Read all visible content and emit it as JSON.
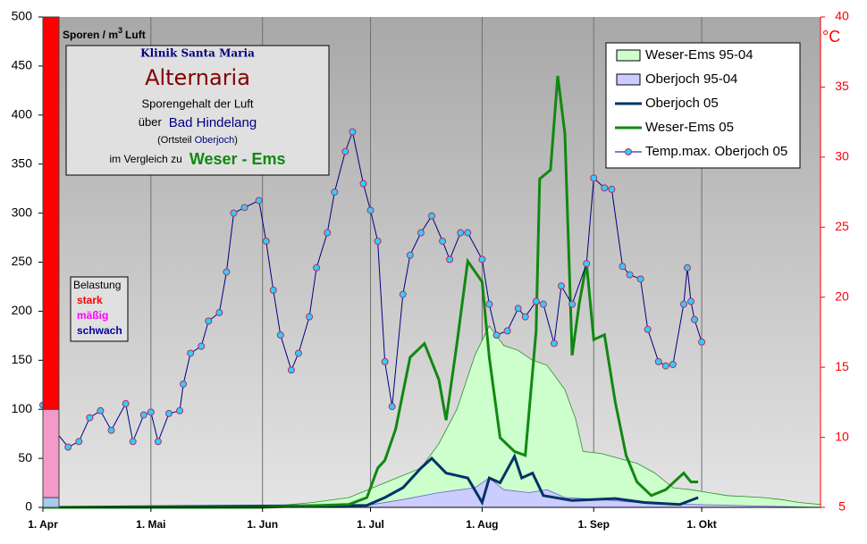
{
  "chart_data": {
    "type": "line",
    "y_label": {
      "text": "Sporen / m",
      "sup": "3",
      "rest": "Luft"
    },
    "y2_label": "°C",
    "xlim": [
      0,
      216
    ],
    "xticks": [
      {
        "value": 0,
        "label": "1. Apr"
      },
      {
        "value": 30,
        "label": "1. Mai"
      },
      {
        "value": 61,
        "label": "1. Jun"
      },
      {
        "value": 91,
        "label": "1. Jul"
      },
      {
        "value": 122,
        "label": "1. Aug"
      },
      {
        "value": 153,
        "label": "1. Sep"
      },
      {
        "value": 183,
        "label": "1. Okt"
      }
    ],
    "ylim": [
      0,
      500
    ],
    "yticks": [
      0,
      50,
      100,
      150,
      200,
      250,
      300,
      350,
      400,
      450,
      500
    ],
    "y2lim": [
      5,
      40
    ],
    "y2ticks": [
      5,
      10,
      15,
      20,
      25,
      30,
      35,
      40
    ],
    "grid": true,
    "legend_position": "upper right",
    "info": {
      "clinic": "Klinik Santa Maria",
      "title": "Alternaria",
      "line1": "Sporengehalt der Luft",
      "over": "über",
      "place": "Bad Hindelang",
      "district_open": "(Ortsteil",
      "district": "Oberjoch",
      "district_close": ")",
      "compare": "im Vergleich zu",
      "region": "Weser - Ems"
    },
    "load": {
      "title": "Belastung",
      "levels": [
        {
          "name": "schwach",
          "value": 10,
          "color": "#a6caf0",
          "text_color": "#000099"
        },
        {
          "name": "mäßig",
          "value": 90,
          "color": "#f49ac8",
          "text_color": "#ff00ff"
        },
        {
          "name": "stark",
          "value": 400,
          "color": "#ff0000",
          "text_color": "#ff0000"
        }
      ]
    },
    "series": [
      {
        "name": "Weser-Ems 95-04",
        "style": "area",
        "color": "#ccffcc",
        "stroke": "#2e8b2e",
        "x": [
          0,
          60,
          75,
          85,
          95,
          105,
          110,
          115,
          120,
          124,
          128,
          132,
          136,
          140,
          145,
          148,
          150,
          155,
          160,
          165,
          170,
          175,
          180,
          185,
          190,
          200,
          205,
          210,
          216
        ],
        "values": [
          0,
          0,
          5,
          10,
          25,
          40,
          65,
          100,
          155,
          185,
          165,
          160,
          150,
          145,
          120,
          90,
          57,
          55,
          50,
          45,
          35,
          20,
          18,
          15,
          12,
          10,
          8,
          5,
          3
        ]
      },
      {
        "name": "Oberjoch 95-04",
        "style": "area",
        "color": "#ccccff",
        "stroke": "#6666cc",
        "x": [
          0,
          90,
          100,
          110,
          120,
          124,
          128,
          135,
          140,
          145,
          155,
          165,
          180,
          216
        ],
        "values": [
          0,
          2,
          8,
          15,
          20,
          30,
          18,
          15,
          18,
          10,
          8,
          5,
          3,
          0
        ]
      },
      {
        "name": "Oberjoch 05",
        "style": "line",
        "color": "#003366",
        "x": [
          0,
          90,
          95,
          100,
          105,
          108,
          112,
          118,
          122,
          124,
          127,
          131,
          133,
          136,
          139,
          147,
          159,
          167,
          177,
          182
        ],
        "values": [
          0,
          2,
          10,
          20,
          40,
          50,
          35,
          30,
          5,
          30,
          25,
          52,
          30,
          35,
          12,
          7,
          9,
          5,
          3,
          10
        ]
      },
      {
        "name": "Weser-Ems 05",
        "style": "line",
        "color": "#118811",
        "x": [
          0,
          60,
          85,
          90,
          93,
          95,
          98,
          102,
          106,
          110,
          112,
          115,
          118,
          122,
          124,
          127,
          131,
          134,
          137,
          138,
          141,
          143,
          145,
          147,
          149,
          151,
          153,
          156,
          159,
          162,
          165,
          169,
          173,
          178,
          180,
          182
        ],
        "values": [
          0,
          0,
          3,
          10,
          40,
          48,
          80,
          153,
          167,
          130,
          89,
          167,
          251,
          230,
          153,
          71,
          57,
          53,
          180,
          335,
          344,
          440,
          381,
          155,
          208,
          249,
          171,
          176,
          107,
          53,
          26,
          12,
          18,
          35,
          26,
          26
        ]
      },
      {
        "name": "Temp.max. Oberjoch 05",
        "style": "markers",
        "axis": "y2",
        "color": "#000080",
        "marker_color": "#33ccff",
        "x": [
          0,
          3,
          7,
          10,
          13,
          16,
          19,
          23,
          25,
          28,
          30,
          32,
          35,
          38,
          39,
          41,
          44,
          46,
          49,
          51,
          53,
          56,
          60,
          62,
          64,
          66,
          69,
          71,
          74,
          76,
          79,
          81,
          84,
          86,
          89,
          91,
          93,
          95,
          97,
          100,
          102,
          105,
          108,
          111,
          113,
          116,
          118,
          122,
          124,
          126,
          129,
          132,
          134,
          137,
          139,
          142,
          144,
          147,
          151,
          153,
          156,
          158,
          161,
          163,
          166,
          168,
          171,
          173,
          175,
          178,
          179,
          180,
          181,
          183
        ],
        "values": [
          12.3,
          10.6,
          9.3,
          9.7,
          11.4,
          11.9,
          10.5,
          12.4,
          9.7,
          11.6,
          11.8,
          9.7,
          11.7,
          11.9,
          13.8,
          16.0,
          16.5,
          18.3,
          18.9,
          21.8,
          26.0,
          26.4,
          26.9,
          24.0,
          20.5,
          17.3,
          14.8,
          16.0,
          18.6,
          22.1,
          24.6,
          27.5,
          30.4,
          31.8,
          28.1,
          26.2,
          24.0,
          15.4,
          12.2,
          20.2,
          23.0,
          24.6,
          25.8,
          24.0,
          22.7,
          24.6,
          24.6,
          22.7,
          19.5,
          17.3,
          17.6,
          19.2,
          18.6,
          19.7,
          19.5,
          16.7,
          20.8,
          19.5,
          22.4,
          28.5,
          27.8,
          27.7,
          22.2,
          21.6,
          21.3,
          17.7,
          15.4,
          15.1,
          15.2,
          19.5,
          22.1,
          19.7,
          18.4,
          16.8
        ]
      }
    ]
  }
}
